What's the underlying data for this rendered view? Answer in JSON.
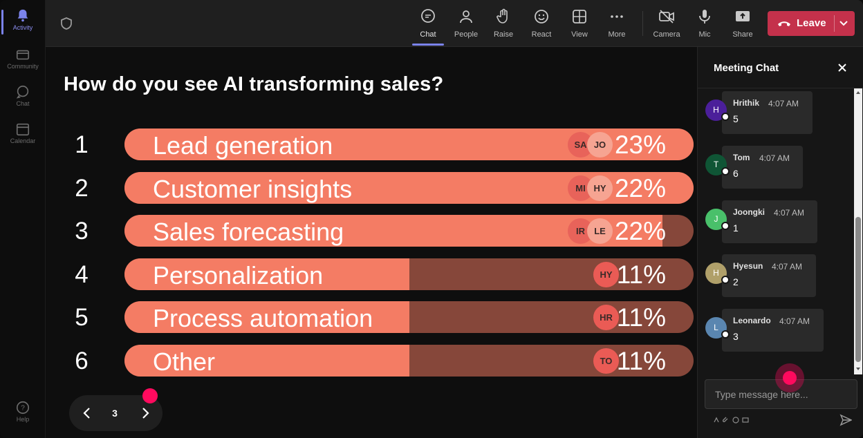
{
  "rail": {
    "items": [
      {
        "label": "Activity",
        "icon": "bell-icon"
      },
      {
        "label": "Community",
        "icon": "community-icon"
      },
      {
        "label": "Chat",
        "icon": "chat-icon"
      },
      {
        "label": "Calendar",
        "icon": "calendar-icon"
      },
      {
        "label": "Help",
        "icon": "help-icon"
      }
    ]
  },
  "toolbar": {
    "chat": "Chat",
    "people": "People",
    "raise": "Raise",
    "react": "React",
    "view": "View",
    "more": "More",
    "camera": "Camera",
    "mic": "Mic",
    "share": "Share",
    "leave": "Leave"
  },
  "poll": {
    "question": "How do you see AI transforming sales?",
    "options": [
      {
        "num": "1",
        "label": "Lead generation",
        "pct": "23%",
        "fill": 1.0,
        "avatars": [
          "SA",
          "JO"
        ]
      },
      {
        "num": "2",
        "label": "Customer insights",
        "pct": "22%",
        "fill": 1.0,
        "avatars": [
          "MI",
          "HY"
        ]
      },
      {
        "num": "3",
        "label": "Sales forecasting",
        "pct": "22%",
        "fill": 0.945,
        "avatars": [
          "IR",
          "LE"
        ]
      },
      {
        "num": "4",
        "label": "Personalization",
        "pct": "11%",
        "fill": 0.5,
        "avatars": [
          "HY"
        ]
      },
      {
        "num": "5",
        "label": "Process automation",
        "pct": "11%",
        "fill": 0.5,
        "avatars": [
          "HR"
        ]
      },
      {
        "num": "6",
        "label": "Other",
        "pct": "11%",
        "fill": 0.5,
        "avatars": [
          "TO"
        ]
      }
    ]
  },
  "pager": {
    "page": "3"
  },
  "chat": {
    "title": "Meeting Chat",
    "messages": [
      {
        "initial": "H",
        "name": "Hrithik",
        "time": "4:07 AM",
        "body": "5",
        "color": "#4b1f9a"
      },
      {
        "initial": "T",
        "name": "Tom",
        "time": "4:07 AM",
        "body": "6",
        "color": "#0f5535"
      },
      {
        "initial": "J",
        "name": "Joongki",
        "time": "4:07 AM",
        "body": "1",
        "color": "#49c06a"
      },
      {
        "initial": "H",
        "name": "Hyesun",
        "time": "4:07 AM",
        "body": "2",
        "color": "#b0a06a"
      },
      {
        "initial": "L",
        "name": "Leonardo",
        "time": "4:07 AM",
        "body": "3",
        "color": "#5a86b0"
      }
    ],
    "input_placeholder": "Type message here..."
  }
}
